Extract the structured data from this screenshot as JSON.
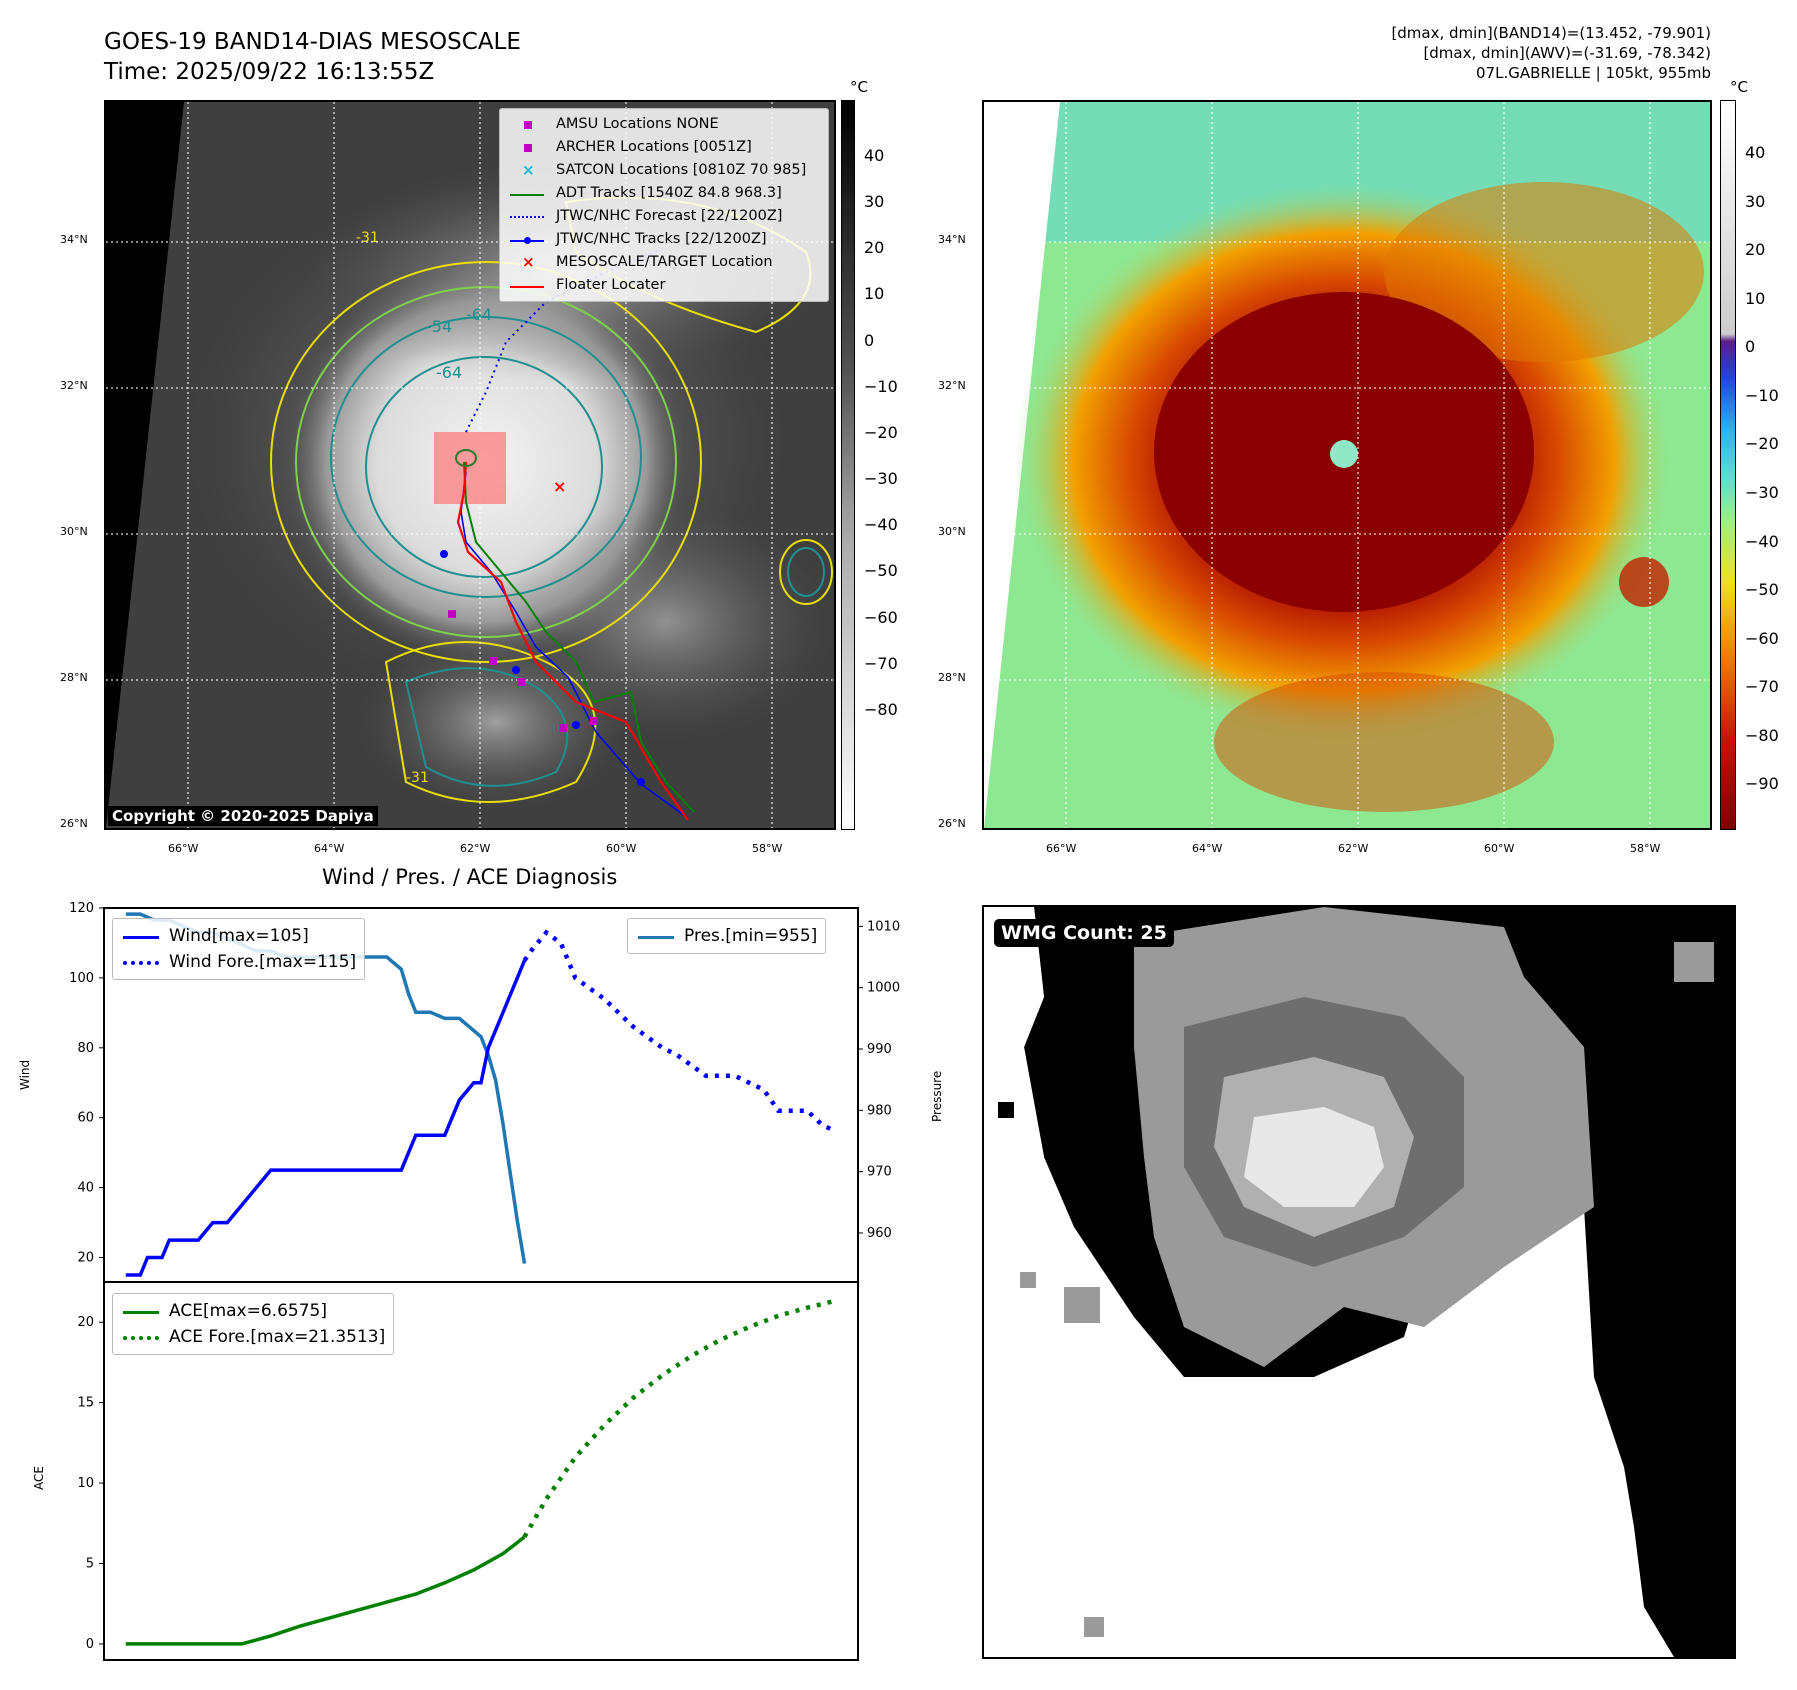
{
  "header": {
    "title_line1": "GOES-19 BAND14-DIAS MESOSCALE",
    "title_line2": "Time: 2025/09/22 16:13:55Z",
    "info_line1": "[dmax, dmin](BAND14)=(13.452, -79.901)",
    "info_line2": "[dmax, dmin](AWV)=(-31.69, -78.342)",
    "info_line3": "07L.GABRIELLE | 105kt, 955mb"
  },
  "map": {
    "lat_labels": [
      "34°N",
      "32°N",
      "30°N",
      "28°N",
      "26°N"
    ],
    "lon_labels": [
      "66°W",
      "64°W",
      "62°W",
      "60°W",
      "58°W"
    ],
    "copyright": "Copyright © 2020-2025 Dapiya",
    "contour_labels": [
      "-31",
      "-54",
      "-64"
    ],
    "colorbar_unit": "°C",
    "left_colorbar_ticks": [
      "40",
      "30",
      "20",
      "10",
      "0",
      "−10",
      "−20",
      "−30",
      "−40",
      "−50",
      "−60",
      "−70",
      "−80"
    ],
    "right_colorbar_ticks": [
      "40",
      "30",
      "20",
      "10",
      "0",
      "−10",
      "−20",
      "−30",
      "−40",
      "−50",
      "−60",
      "−70",
      "−80",
      "−90"
    ],
    "colors": {
      "adt": "#008000",
      "jtwc": "#0000ff",
      "satcon": "#00bcd4",
      "archer": "#c000c0",
      "target": "#ff0000",
      "contour_yellow": "#e8e000",
      "contour_teal": "#1f8f8f"
    }
  },
  "legend": {
    "items": [
      {
        "label": "AMSU Locations NONE",
        "icon": "magenta-square"
      },
      {
        "label": "ARCHER Locations [0051Z]",
        "icon": "magenta-square"
      },
      {
        "label": "SATCON Locations [0810Z 70 985]",
        "icon": "cyan-x"
      },
      {
        "label": "ADT Tracks [1540Z 84.8 968.3]",
        "icon": "green-line"
      },
      {
        "label": "JTWC/NHC Forecast [22/1200Z]",
        "icon": "blue-dotted-line"
      },
      {
        "label": "JTWC/NHC Tracks [22/1200Z]",
        "icon": "blue-line-dot"
      },
      {
        "label": "MESOSCALE/TARGET Location",
        "icon": "red-x"
      },
      {
        "label": "Floater Locater",
        "icon": "red-line"
      }
    ]
  },
  "diagnosis": {
    "title": "Wind / Pres. / ACE Diagnosis",
    "wind_ylabel": "Wind",
    "pres_ylabel": "Pressure",
    "ace_ylabel": "ACE",
    "wind_legend": "Wind[max=105]",
    "wind_fore_legend": "Wind Fore.[max=115]",
    "pres_legend": "Pres.[min=955]",
    "ace_legend": "ACE[max=6.6575]",
    "ace_fore_legend": "ACE Fore.[max=21.3513]"
  },
  "wmg": {
    "label": "WMG Count: 25"
  },
  "chart_data": [
    {
      "type": "line",
      "title": "Wind / Pres. / ACE Diagnosis",
      "ylabel": "Wind",
      "ylim": [
        13,
        120
      ],
      "y2label": "Pressure",
      "y2lim": [
        952,
        1013
      ],
      "y_ticks": [
        20,
        40,
        60,
        80,
        100,
        120
      ],
      "y2_ticks": [
        960,
        970,
        980,
        990,
        1000,
        1010
      ],
      "series": [
        {
          "name": "Wind[max=105]",
          "color": "#0000ff",
          "style": "solid",
          "axis": "left",
          "x": [
            0,
            1,
            1.5,
            2.5,
            3,
            4,
            5,
            6,
            6.5,
            7,
            8,
            9,
            10,
            11,
            12,
            13,
            14,
            15,
            16,
            17,
            18,
            19,
            19.5,
            20,
            20.5,
            21,
            21.5,
            22,
            23,
            24,
            24.5,
            25,
            26,
            27,
            27.5
          ],
          "y": [
            15,
            15,
            20,
            20,
            25,
            25,
            25,
            30,
            30,
            30,
            35,
            40,
            45,
            45,
            45,
            45,
            45,
            45,
            45,
            45,
            45,
            45,
            50,
            55,
            55,
            55,
            55,
            55,
            65,
            70,
            70,
            80,
            90,
            100,
            105
          ]
        },
        {
          "name": "Wind Fore.[max=115]",
          "color": "#0000ff",
          "style": "dotted",
          "axis": "left",
          "x": [
            27.5,
            28,
            29,
            30,
            31,
            32,
            33,
            34,
            35,
            36,
            37,
            38,
            39,
            40,
            41,
            42,
            43,
            44,
            45,
            46,
            47,
            48,
            49
          ],
          "y": [
            105,
            108,
            113,
            110,
            100,
            97,
            94,
            90,
            86,
            83,
            80,
            78,
            75,
            72,
            72,
            72,
            70,
            68,
            62,
            62,
            62,
            58,
            56
          ]
        },
        {
          "name": "Pres.[min=955]",
          "color": "#1f77b4",
          "style": "solid",
          "axis": "right",
          "x": [
            0,
            1,
            2,
            3,
            4,
            5,
            6,
            7,
            8,
            9,
            10,
            11,
            12,
            13,
            14,
            15,
            16,
            17,
            18,
            19,
            19.5,
            20,
            21,
            22,
            23,
            24,
            24.5,
            25,
            25.5,
            26,
            26.5,
            27,
            27.5
          ],
          "y": [
            1012,
            1012,
            1011,
            1011,
            1010,
            1009,
            1009,
            1008,
            1007,
            1006,
            1006,
            1005,
            1005,
            1005,
            1005,
            1005,
            1005,
            1005,
            1005,
            1003,
            999,
            996,
            996,
            995,
            995,
            993,
            992,
            989,
            985,
            978,
            970,
            962,
            955
          ]
        }
      ]
    },
    {
      "type": "line",
      "ylabel": "ACE",
      "ylim": [
        -1,
        22.5
      ],
      "y_ticks": [
        0,
        5,
        10,
        15,
        20
      ],
      "series": [
        {
          "name": "ACE[max=6.6575]",
          "color": "#008000",
          "style": "solid",
          "x": [
            0,
            2,
            4,
            6,
            8,
            10,
            12,
            14,
            16,
            18,
            20,
            22,
            24,
            26,
            27,
            27.5
          ],
          "y": [
            0,
            0,
            0,
            0,
            0,
            0.5,
            1.1,
            1.6,
            2.1,
            2.6,
            3.1,
            3.8,
            4.6,
            5.6,
            6.3,
            6.66
          ]
        },
        {
          "name": "ACE Fore.[max=21.3513]",
          "color": "#008000",
          "style": "dotted",
          "x": [
            27.5,
            29,
            31,
            33,
            35,
            37,
            39,
            41,
            43,
            45,
            47,
            49
          ],
          "y": [
            6.66,
            9.0,
            11.6,
            13.6,
            15.3,
            16.7,
            17.9,
            18.9,
            19.7,
            20.4,
            20.9,
            21.35
          ]
        }
      ]
    }
  ]
}
